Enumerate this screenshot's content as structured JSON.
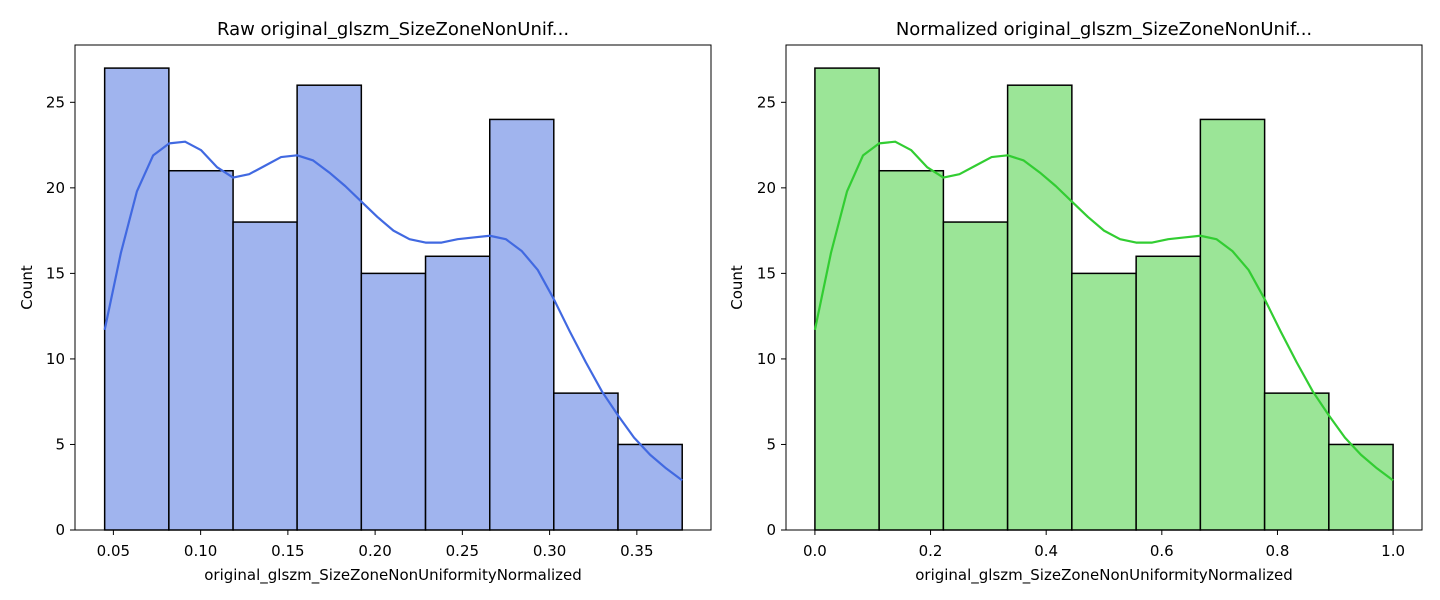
{
  "chart_data": [
    {
      "type": "bar",
      "title": "Raw original_glszm_SizeZoneNonUnif...",
      "xlabel": "original_glszm_SizeZoneNonUniformityNormalized",
      "ylabel": "Count",
      "bin_edges": [
        0.045,
        0.0818,
        0.1186,
        0.1553,
        0.1921,
        0.2289,
        0.2657,
        0.3024,
        0.3392,
        0.376
      ],
      "values": [
        27,
        21,
        18,
        26,
        15,
        16,
        24,
        8,
        5
      ],
      "xlim": [
        0.028,
        0.3925
      ],
      "ylim": [
        0,
        28.35
      ],
      "xticks": [
        0.05,
        0.1,
        0.15,
        0.2,
        0.25,
        0.3,
        0.35
      ],
      "xtick_labels": [
        "0.05",
        "0.10",
        "0.15",
        "0.20",
        "0.25",
        "0.30",
        "0.35"
      ],
      "yticks": [
        0,
        5,
        10,
        15,
        20,
        25
      ],
      "ytick_labels": [
        "0",
        "5",
        "10",
        "15",
        "20",
        "25"
      ],
      "bar_color": "#a0b4ee",
      "edge_color": "#000000",
      "kde": {
        "color": "#4169e1",
        "x": [
          0.045,
          0.0543,
          0.0635,
          0.0728,
          0.082,
          0.0911,
          0.1003,
          0.1095,
          0.1186,
          0.1278,
          0.137,
          0.1461,
          0.1553,
          0.1645,
          0.1737,
          0.1829,
          0.1921,
          0.2013,
          0.2105,
          0.2197,
          0.2289,
          0.2381,
          0.2473,
          0.2565,
          0.2657,
          0.2749,
          0.2841,
          0.2932,
          0.3024,
          0.3116,
          0.3208,
          0.33,
          0.3392,
          0.3484,
          0.3576,
          0.3668,
          0.376
        ],
        "y": [
          11.7,
          16.2,
          19.8,
          21.9,
          22.6,
          22.7,
          22.2,
          21.2,
          20.6,
          20.8,
          21.3,
          21.8,
          21.9,
          21.6,
          20.9,
          20.1,
          19.2,
          18.3,
          17.5,
          17.0,
          16.8,
          16.8,
          17.0,
          17.1,
          17.2,
          17.0,
          16.3,
          15.2,
          13.5,
          11.6,
          9.8,
          8.1,
          6.7,
          5.4,
          4.4,
          3.6,
          2.9
        ]
      }
    },
    {
      "type": "bar",
      "title": "Normalized original_glszm_SizeZoneNonUnif...",
      "xlabel": "original_glszm_SizeZoneNonUniformityNormalized",
      "ylabel": "Count",
      "bin_edges": [
        0.0,
        0.1111,
        0.2222,
        0.3333,
        0.4444,
        0.5556,
        0.6667,
        0.7778,
        0.8889,
        1.0
      ],
      "values": [
        27,
        21,
        18,
        26,
        15,
        16,
        24,
        8,
        5
      ],
      "xlim": [
        -0.05,
        1.05
      ],
      "ylim": [
        0,
        28.35
      ],
      "xticks": [
        0.0,
        0.2,
        0.4,
        0.6,
        0.8,
        1.0
      ],
      "xtick_labels": [
        "0.0",
        "0.2",
        "0.4",
        "0.6",
        "0.8",
        "1.0"
      ],
      "yticks": [
        0,
        5,
        10,
        15,
        20,
        25
      ],
      "ytick_labels": [
        "0",
        "5",
        "10",
        "15",
        "20",
        "25"
      ],
      "bar_color": "#9be597",
      "edge_color": "#000000",
      "kde": {
        "color": "#32cd32",
        "x": [
          0.0,
          0.0278,
          0.0556,
          0.0833,
          0.1111,
          0.1389,
          0.1667,
          0.1944,
          0.2222,
          0.25,
          0.2778,
          0.3056,
          0.3333,
          0.3611,
          0.3889,
          0.4167,
          0.4444,
          0.4722,
          0.5,
          0.5278,
          0.5556,
          0.5833,
          0.6111,
          0.6389,
          0.6667,
          0.6944,
          0.7222,
          0.75,
          0.7778,
          0.8056,
          0.8333,
          0.8611,
          0.8889,
          0.9167,
          0.9444,
          0.9722,
          1.0
        ],
        "y": [
          11.7,
          16.2,
          19.8,
          21.9,
          22.6,
          22.7,
          22.2,
          21.2,
          20.6,
          20.8,
          21.3,
          21.8,
          21.9,
          21.6,
          20.9,
          20.1,
          19.2,
          18.3,
          17.5,
          17.0,
          16.8,
          16.8,
          17.0,
          17.1,
          17.2,
          17.0,
          16.3,
          15.2,
          13.5,
          11.6,
          9.8,
          8.1,
          6.7,
          5.4,
          4.4,
          3.6,
          2.9
        ]
      }
    }
  ]
}
